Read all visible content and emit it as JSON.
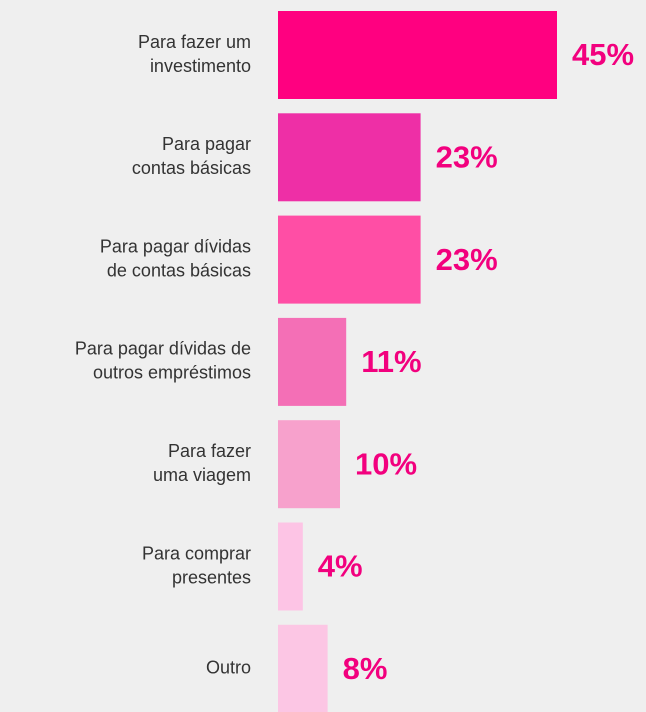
{
  "chart_data": {
    "type": "barh",
    "categories": [
      [
        "Para fazer um",
        "investimento"
      ],
      [
        "Para pagar",
        "contas básicas"
      ],
      [
        "Para pagar dívidas",
        "de contas básicas"
      ],
      [
        "Para pagar dívidas de",
        "outros empréstimos"
      ],
      [
        "Para fazer",
        "uma viagem"
      ],
      [
        "Para comprar",
        "presentes"
      ],
      [
        "Outro"
      ]
    ],
    "values": [
      45,
      23,
      23,
      11,
      10,
      4,
      8
    ],
    "value_labels": [
      "45%",
      "23%",
      "23%",
      "11%",
      "10%",
      "4%",
      "8%"
    ],
    "colors": [
      "#ff0080",
      "#ee2fa6",
      "#ff4ea5",
      "#f46fb6",
      "#f7a1cc",
      "#fdc4e5",
      "#fcc6e4"
    ],
    "value_label_color": "#f2007e"
  }
}
